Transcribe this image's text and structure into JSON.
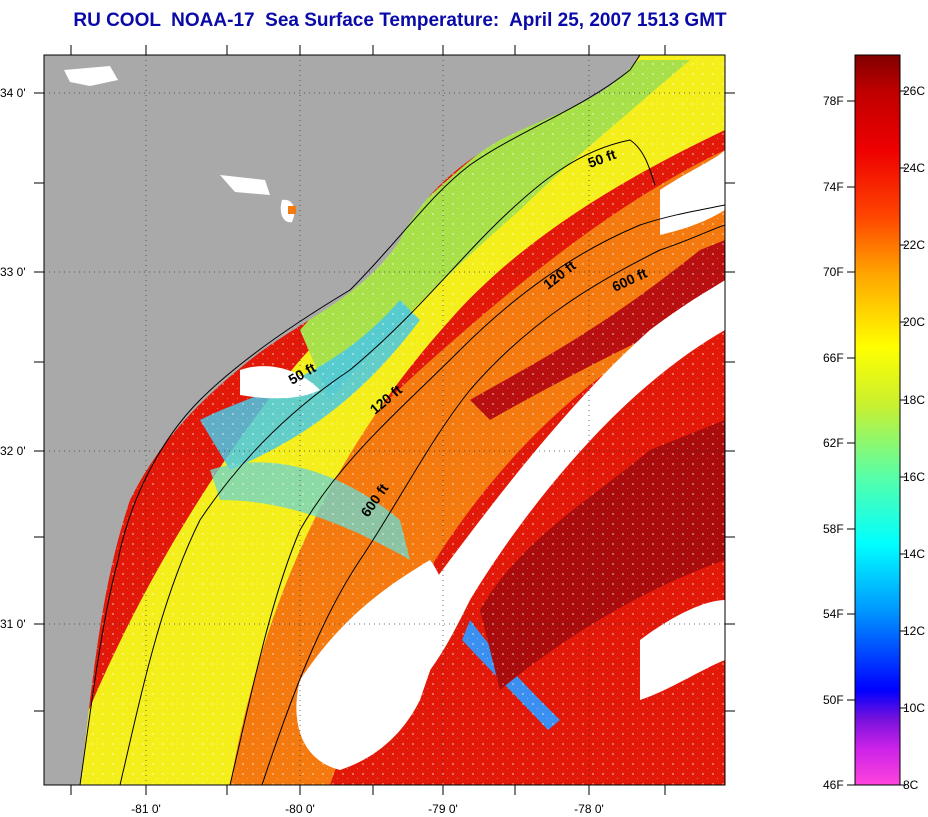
{
  "title": "RU COOL  NOAA-17  Sea Surface Temperature:  April 25, 2007 1513 GMT",
  "map": {
    "lat_labels": [
      "34 0'",
      "33 0'",
      "32 0'",
      "31 0'"
    ],
    "lon_labels": [
      "-81 0'",
      "-80 0'",
      "-79 0'",
      "-78 0'"
    ],
    "contour_labels": [
      "50 ft",
      "50 ft",
      "120 ft",
      "120 ft",
      "600 ft",
      "600 ft"
    ],
    "colors": {
      "land": "#a9a9a9",
      "no_data": "#ffffff",
      "shelf_yellow": "#f4ee1a",
      "shelf_green": "#a8e04a",
      "cool_cyan": "#49c8e8",
      "gulf_red": "#e21808",
      "gulf_dark_red": "#a80c0c",
      "orange": "#f47a10"
    }
  },
  "colorbar": {
    "fahrenheit_labels": [
      "78F",
      "74F",
      "70F",
      "66F",
      "62F",
      "58F",
      "54F",
      "50F",
      "46F"
    ],
    "celsius_labels": [
      "26C",
      "24C",
      "22C",
      "20C",
      "18C",
      "16C",
      "14C",
      "12C",
      "10C",
      "8C"
    ],
    "range_celsius": [
      8,
      27
    ],
    "gradient_stops": [
      "#ff44dd",
      "#7711dd",
      "#0000ff",
      "#0099ff",
      "#00ffff",
      "#55ffaa",
      "#c8f030",
      "#ffff00",
      "#ffa500",
      "#ff4400",
      "#ee0000",
      "#c00000",
      "#800000"
    ]
  }
}
